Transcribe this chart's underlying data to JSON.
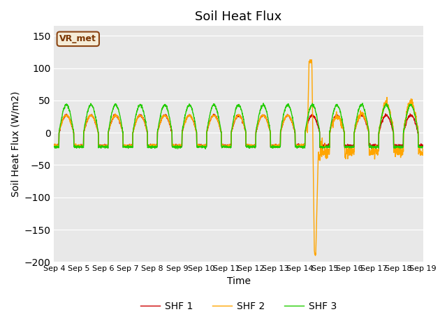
{
  "title": "Soil Heat Flux",
  "ylabel": "Soil Heat Flux (W/m2)",
  "xlabel": "Time",
  "ylim": [
    -200,
    165
  ],
  "yticks": [
    -200,
    -150,
    -100,
    -50,
    0,
    50,
    100,
    150
  ],
  "num_days": 15,
  "points_per_day": 144,
  "line_colors": [
    "#cc0000",
    "#ffa500",
    "#22cc00"
  ],
  "line_labels": [
    "SHF 1",
    "SHF 2",
    "SHF 3"
  ],
  "background_color": "#e8e8e8",
  "fig_color": "#ffffff",
  "title_fontsize": 13,
  "axis_label_fontsize": 10,
  "tick_fontsize": 8,
  "legend_fontsize": 10,
  "vrmet_label": "VR_met",
  "shf1_day_amp": 27,
  "shf1_night": -20,
  "shf3_day_amp": 43,
  "shf3_night": -22,
  "anomaly_day": 10.35,
  "anomaly_peak": 113,
  "anomaly_trough": -188
}
